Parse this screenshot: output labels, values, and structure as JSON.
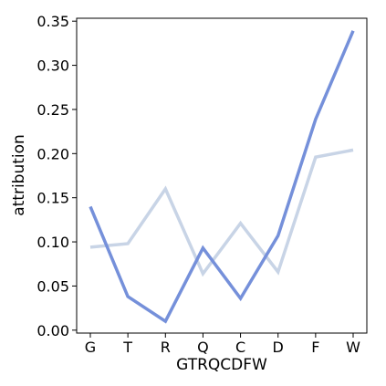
{
  "chart_data": {
    "type": "line",
    "title": "",
    "xlabel": "GTRQCDFW",
    "ylabel": "attribution",
    "categories": [
      "G",
      "T",
      "R",
      "Q",
      "C",
      "D",
      "F",
      "W"
    ],
    "ylim": [
      -0.0033,
      0.3533
    ],
    "yticks": [
      0.0,
      0.05,
      0.1,
      0.15,
      0.2,
      0.25,
      0.3,
      0.35
    ],
    "ytick_labels": [
      "0.00",
      "0.05",
      "0.10",
      "0.15",
      "0.20",
      "0.25",
      "0.30",
      "0.35"
    ],
    "grid": false,
    "series": [
      {
        "values": [
          0.094,
          0.098,
          0.16,
          0.064,
          0.121,
          0.066,
          0.196,
          0.204
        ],
        "color": "#c8d4e6"
      },
      {
        "values": [
          0.14,
          0.038,
          0.01,
          0.093,
          0.036,
          0.107,
          0.239,
          0.339
        ],
        "color": "#7590da"
      }
    ]
  }
}
